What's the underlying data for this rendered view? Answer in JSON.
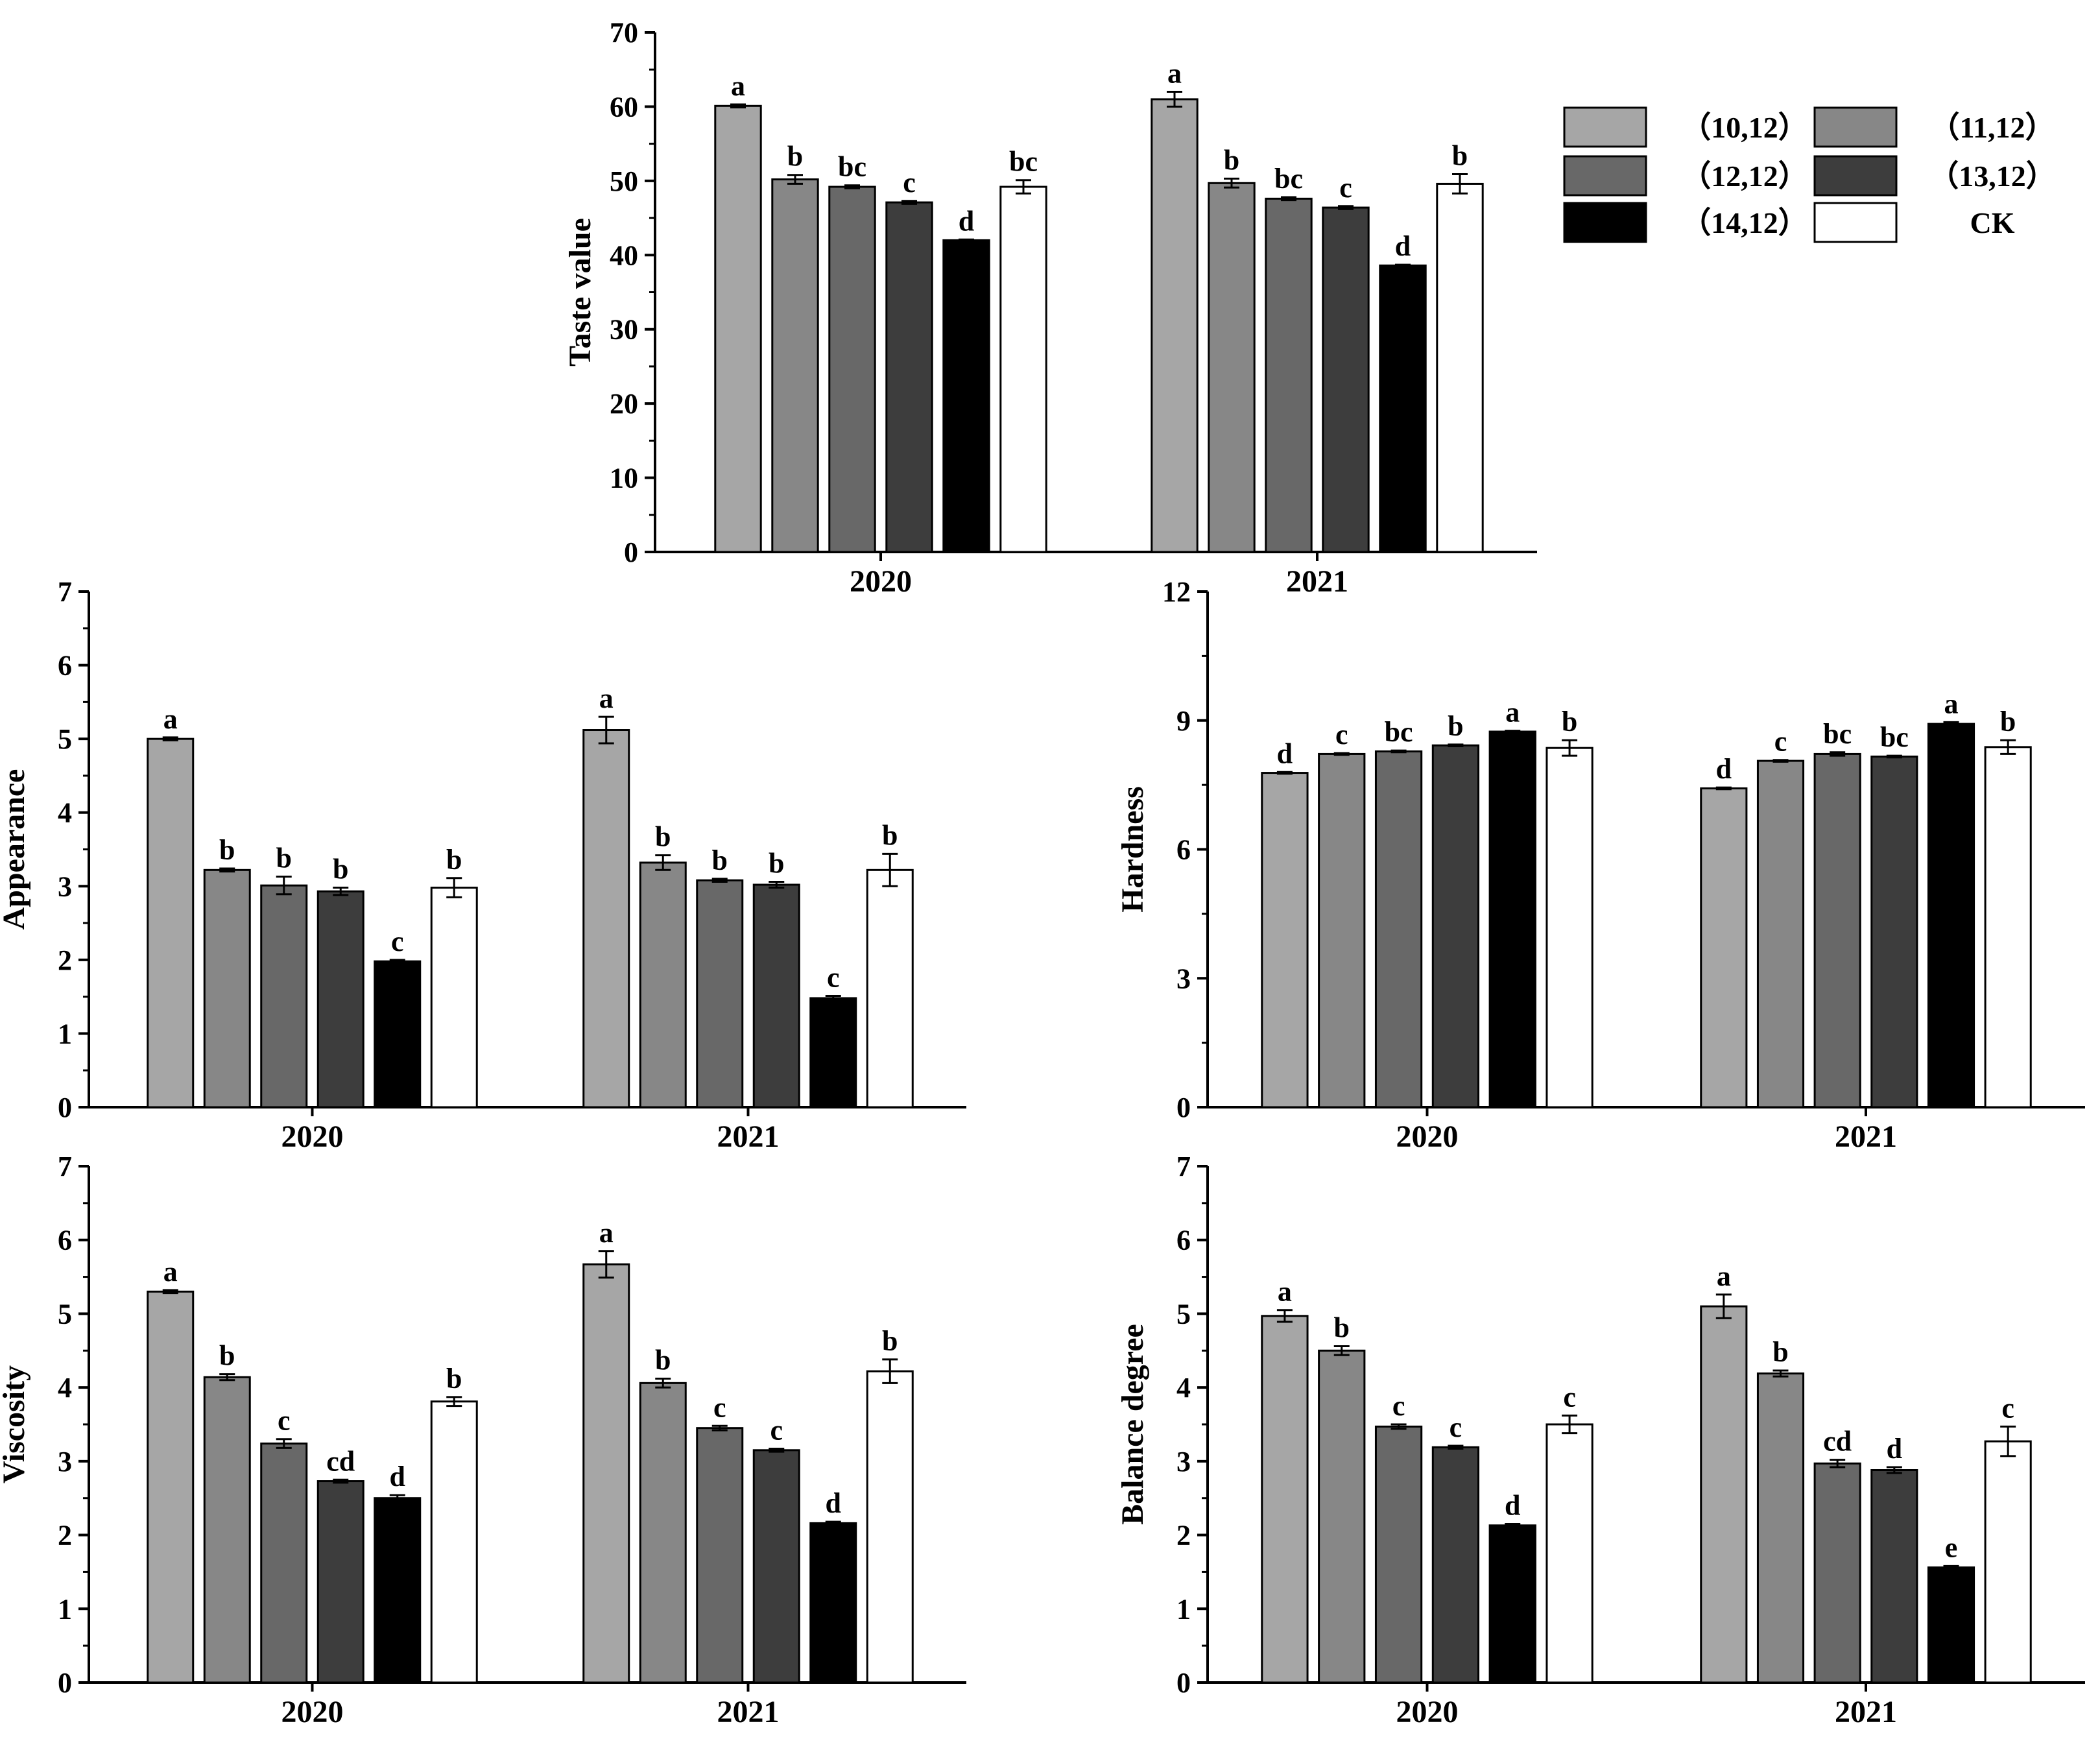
{
  "legend": {
    "entries": [
      {
        "label": "（10,12）",
        "color": "#a6a6a6"
      },
      {
        "label": "（11,12）",
        "color": "#878787"
      },
      {
        "label": "（12,12）",
        "color": "#686868"
      },
      {
        "label": "（13,12）",
        "color": "#3d3d3d"
      },
      {
        "label": "（14,12）",
        "color": "#000000"
      },
      {
        "label": "CK",
        "color": "#ffffff"
      }
    ]
  },
  "chart_data": [
    {
      "id": "taste",
      "type": "bar",
      "title": "",
      "xlabel": "",
      "ylabel": "Taste value",
      "ylim": [
        0,
        70
      ],
      "yticks": [
        "0",
        "10",
        "20",
        "30",
        "40",
        "50",
        "60",
        "70"
      ],
      "categories": [
        "2020",
        "2021"
      ],
      "series": [
        {
          "name": "（10,12）",
          "values": [
            60.1,
            61.0
          ],
          "errors": [
            0.2,
            1.0
          ],
          "letters": [
            "a",
            "a"
          ]
        },
        {
          "name": "（11,12）",
          "values": [
            50.2,
            49.7
          ],
          "errors": [
            0.6,
            0.6
          ],
          "letters": [
            "b",
            "b"
          ]
        },
        {
          "name": "（12,12）",
          "values": [
            49.2,
            47.6
          ],
          "errors": [
            0.2,
            0.2
          ],
          "letters": [
            "bc",
            "bc"
          ]
        },
        {
          "name": "（13,12）",
          "values": [
            47.1,
            46.4
          ],
          "errors": [
            0.2,
            0.2
          ],
          "letters": [
            "c",
            "c"
          ]
        },
        {
          "name": "（14,12）",
          "values": [
            42.0,
            38.6
          ],
          "errors": [
            0.1,
            0.1
          ],
          "letters": [
            "d",
            "d"
          ]
        },
        {
          "name": "CK",
          "values": [
            49.2,
            49.6
          ],
          "errors": [
            0.9,
            1.3
          ],
          "letters": [
            "bc",
            "b"
          ]
        }
      ]
    },
    {
      "id": "appearance",
      "type": "bar",
      "title": "",
      "xlabel": "",
      "ylabel": "Appearance",
      "ylim": [
        0,
        7
      ],
      "yticks": [
        "0",
        "1",
        "2",
        "3",
        "4",
        "5",
        "6",
        "7"
      ],
      "categories": [
        "2020",
        "2021"
      ],
      "series": [
        {
          "name": "（10,12）",
          "values": [
            5.0,
            5.12
          ],
          "errors": [
            0.02,
            0.18
          ],
          "letters": [
            "a",
            "a"
          ]
        },
        {
          "name": "（11,12）",
          "values": [
            3.22,
            3.32
          ],
          "errors": [
            0.02,
            0.1
          ],
          "letters": [
            "b",
            "b"
          ]
        },
        {
          "name": "（12,12）",
          "values": [
            3.01,
            3.08
          ],
          "errors": [
            0.12,
            0.02
          ],
          "letters": [
            "b",
            "b"
          ]
        },
        {
          "name": "（13,12）",
          "values": [
            2.93,
            3.02
          ],
          "errors": [
            0.05,
            0.04
          ],
          "letters": [
            "b",
            "b"
          ]
        },
        {
          "name": "（14,12）",
          "values": [
            1.98,
            1.48
          ],
          "errors": [
            0.02,
            0.03
          ],
          "letters": [
            "c",
            "c"
          ]
        },
        {
          "name": "CK",
          "values": [
            2.98,
            3.22
          ],
          "errors": [
            0.13,
            0.22
          ],
          "letters": [
            "b",
            "b"
          ]
        }
      ]
    },
    {
      "id": "hardness",
      "type": "bar",
      "title": "",
      "xlabel": "",
      "ylabel": "Hardness",
      "ylim": [
        0,
        12
      ],
      "yticks": [
        "0",
        "3",
        "6",
        "9",
        "12"
      ],
      "categories": [
        "2020",
        "2021"
      ],
      "series": [
        {
          "name": "（10,12）",
          "values": [
            7.78,
            7.42
          ],
          "errors": [
            0.02,
            0.02
          ],
          "letters": [
            "d",
            "d"
          ]
        },
        {
          "name": "（11,12）",
          "values": [
            8.22,
            8.06
          ],
          "errors": [
            0.02,
            0.02
          ],
          "letters": [
            "c",
            "c"
          ]
        },
        {
          "name": "（12,12）",
          "values": [
            8.28,
            8.22
          ],
          "errors": [
            0.02,
            0.04
          ],
          "letters": [
            "bc",
            "bc"
          ]
        },
        {
          "name": "（13,12）",
          "values": [
            8.42,
            8.16
          ],
          "errors": [
            0.02,
            0.02
          ],
          "letters": [
            "b",
            "bc"
          ]
        },
        {
          "name": "（14,12）",
          "values": [
            8.74,
            8.92
          ],
          "errors": [
            0.02,
            0.04
          ],
          "letters": [
            "a",
            "a"
          ]
        },
        {
          "name": "CK",
          "values": [
            8.36,
            8.38
          ],
          "errors": [
            0.18,
            0.16
          ],
          "letters": [
            "b",
            "b"
          ]
        }
      ]
    },
    {
      "id": "viscosity",
      "type": "bar",
      "title": "",
      "xlabel": "",
      "ylabel": "Viscosity",
      "ylim": [
        0,
        7
      ],
      "yticks": [
        "0",
        "1",
        "2",
        "3",
        "4",
        "5",
        "6",
        "7"
      ],
      "categories": [
        "2020",
        "2021"
      ],
      "series": [
        {
          "name": "（10,12）",
          "values": [
            5.3,
            5.67
          ],
          "errors": [
            0.02,
            0.18
          ],
          "letters": [
            "a",
            "a"
          ]
        },
        {
          "name": "（11,12）",
          "values": [
            4.14,
            4.06
          ],
          "errors": [
            0.04,
            0.06
          ],
          "letters": [
            "b",
            "b"
          ]
        },
        {
          "name": "（12,12）",
          "values": [
            3.24,
            3.45
          ],
          "errors": [
            0.06,
            0.03
          ],
          "letters": [
            "c",
            "c"
          ]
        },
        {
          "name": "（13,12）",
          "values": [
            2.73,
            3.15
          ],
          "errors": [
            0.02,
            0.02
          ],
          "letters": [
            "cd",
            "c"
          ]
        },
        {
          "name": "（14,12）",
          "values": [
            2.5,
            2.16
          ],
          "errors": [
            0.04,
            0.02
          ],
          "letters": [
            "d",
            "d"
          ]
        },
        {
          "name": "CK",
          "values": [
            3.81,
            4.22
          ],
          "errors": [
            0.06,
            0.16
          ],
          "letters": [
            "b",
            "b"
          ]
        }
      ]
    },
    {
      "id": "balance",
      "type": "bar",
      "title": "",
      "xlabel": "",
      "ylabel": "Balance degree",
      "ylim": [
        0,
        7
      ],
      "yticks": [
        "0",
        "1",
        "2",
        "3",
        "4",
        "5",
        "6",
        "7"
      ],
      "categories": [
        "2020",
        "2021"
      ],
      "series": [
        {
          "name": "（10,12）",
          "values": [
            4.97,
            5.1
          ],
          "errors": [
            0.08,
            0.16
          ],
          "letters": [
            "a",
            "a"
          ]
        },
        {
          "name": "（11,12）",
          "values": [
            4.5,
            4.19
          ],
          "errors": [
            0.06,
            0.04
          ],
          "letters": [
            "b",
            "b"
          ]
        },
        {
          "name": "（12,12）",
          "values": [
            3.47,
            2.97
          ],
          "errors": [
            0.03,
            0.05
          ],
          "letters": [
            "c",
            "cd"
          ]
        },
        {
          "name": "（13,12）",
          "values": [
            3.19,
            2.88
          ],
          "errors": [
            0.02,
            0.04
          ],
          "letters": [
            "c",
            "d"
          ]
        },
        {
          "name": "（14,12）",
          "values": [
            2.13,
            1.56
          ],
          "errors": [
            0.02,
            0.02
          ],
          "letters": [
            "d",
            "e"
          ]
        },
        {
          "name": "CK",
          "values": [
            3.5,
            3.27
          ],
          "errors": [
            0.12,
            0.2
          ],
          "letters": [
            "c",
            "c"
          ]
        }
      ]
    }
  ]
}
